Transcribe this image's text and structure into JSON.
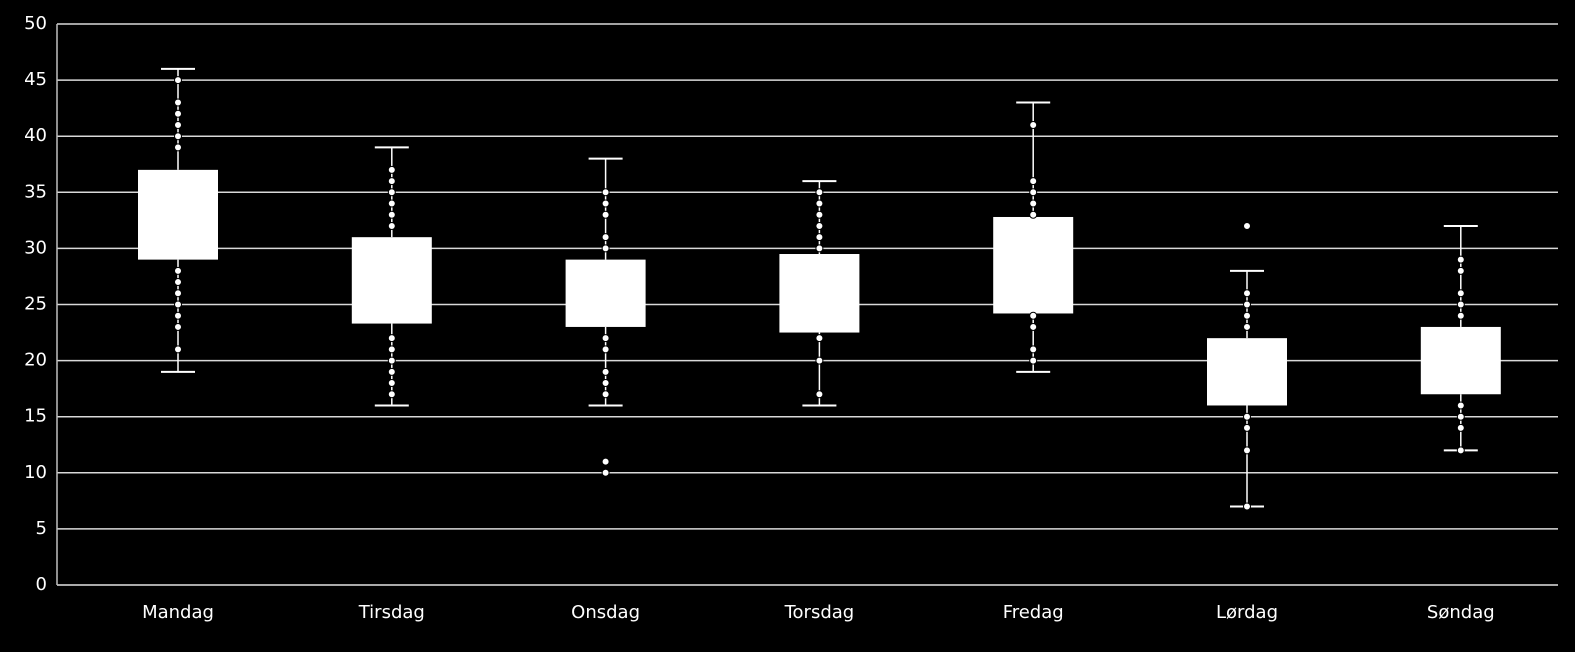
{
  "chart_data": {
    "type": "box",
    "categories": [
      "Mandag",
      "Tirsdag",
      "Onsdag",
      "Torsdag",
      "Fredag",
      "Lørdag",
      "Søndag"
    ],
    "whisker_low": [
      19,
      16,
      16,
      16,
      19,
      7,
      12
    ],
    "q1": [
      29,
      23.3,
      23,
      22.5,
      24.2,
      16,
      17
    ],
    "q3": [
      37,
      31,
      29,
      29.5,
      32.8,
      22,
      23
    ],
    "whisker_high": [
      46,
      39,
      38,
      36,
      43,
      28,
      32
    ],
    "points": [
      [
        45,
        43,
        42,
        41,
        40,
        39,
        28,
        27,
        26,
        25,
        24,
        23,
        21
      ],
      [
        37,
        36,
        35,
        34,
        33,
        32,
        22,
        21,
        20,
        19,
        18,
        17
      ],
      [
        35,
        34,
        33,
        31,
        30,
        22,
        21,
        19,
        18,
        17,
        11,
        10
      ],
      [
        35,
        34,
        33,
        32,
        31,
        30,
        22,
        20,
        17
      ],
      [
        41,
        36,
        35,
        34,
        33,
        24,
        23,
        21,
        20
      ],
      [
        32,
        26,
        25,
        24,
        23,
        15,
        14,
        12,
        7
      ],
      [
        29,
        28,
        26,
        25,
        24,
        16,
        15,
        14,
        12
      ]
    ],
    "color": "#ffffff",
    "ylim": [
      0,
      50
    ],
    "yticks": [
      0,
      5,
      10,
      15,
      20,
      25,
      30,
      35,
      40,
      45,
      50
    ],
    "grid": true
  }
}
